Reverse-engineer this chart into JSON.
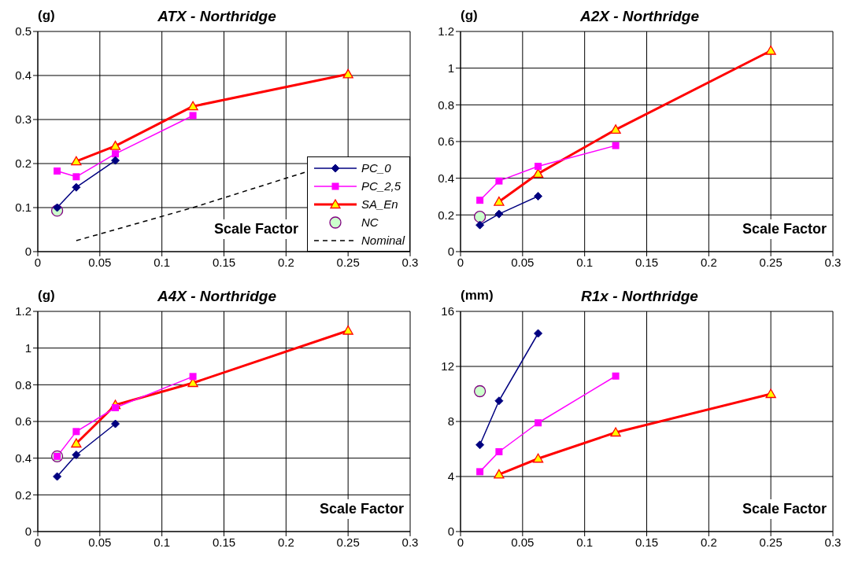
{
  "chart_data": [
    {
      "type": "line",
      "title": "ATX - Northridge",
      "ylabel": "(g)",
      "xlabel": "Scale Factor",
      "xlim": [
        0,
        0.3
      ],
      "xticks": [
        0,
        0.05,
        0.1,
        0.15,
        0.2,
        0.25,
        0.3
      ],
      "ylim": [
        0,
        0.5
      ],
      "yticks": [
        0,
        0.1,
        0.2,
        0.3,
        0.4,
        0.5
      ],
      "grid": true,
      "legend": "bottom right",
      "series": [
        {
          "name": "PC_0",
          "color": "#000080",
          "marker": "diamond",
          "line_style": "solid",
          "x": [
            0.0156,
            0.031,
            0.0625
          ],
          "values": [
            0.1,
            0.146,
            0.207
          ]
        },
        {
          "name": "PC_2,5",
          "color": "#ff00ff",
          "marker": "square",
          "line_style": "solid",
          "x": [
            0.0156,
            0.031,
            0.0625,
            0.125
          ],
          "values": [
            0.183,
            0.17,
            0.222,
            0.309
          ]
        },
        {
          "name": "SA_En",
          "color": "#ff0000",
          "marker": "triangle",
          "line_style": "solid",
          "x": [
            0.031,
            0.0625,
            0.125,
            0.25
          ],
          "values": [
            0.205,
            0.24,
            0.33,
            0.403
          ]
        },
        {
          "name": "NC",
          "type": "scatter",
          "color": "#ccffcc",
          "marker": "circle",
          "x": [
            0.0156
          ],
          "values": [
            0.093
          ]
        },
        {
          "name": "Nominal",
          "color": "#000000",
          "marker": "none",
          "line_style": "dashed",
          "x": [
            0.031,
            0.0625,
            0.125,
            0.215
          ],
          "values": [
            0.025,
            0.05,
            0.1,
            0.18
          ]
        }
      ]
    },
    {
      "type": "line",
      "title": "A2X - Northridge",
      "ylabel": "(g)",
      "xlabel": "Scale Factor",
      "xlim": [
        0,
        0.3
      ],
      "xticks": [
        0,
        0.05,
        0.1,
        0.15,
        0.2,
        0.25,
        0.3
      ],
      "ylim": [
        0,
        1.2
      ],
      "yticks": [
        0,
        0.2,
        0.4,
        0.6,
        0.8,
        1,
        1.2
      ],
      "grid": true,
      "series": [
        {
          "color": "#000080",
          "marker": "diamond",
          "line_style": "solid",
          "x": [
            0.0156,
            0.031,
            0.0625
          ],
          "values": [
            0.145,
            0.205,
            0.302
          ]
        },
        {
          "color": "#ff00ff",
          "marker": "square",
          "line_style": "solid",
          "x": [
            0.0156,
            0.031,
            0.0625,
            0.125
          ],
          "values": [
            0.28,
            0.385,
            0.465,
            0.578
          ]
        },
        {
          "color": "#ff0000",
          "marker": "triangle",
          "line_style": "solid",
          "x": [
            0.031,
            0.0625,
            0.125,
            0.25
          ],
          "values": [
            0.272,
            0.425,
            0.665,
            1.095
          ]
        },
        {
          "type": "scatter",
          "color": "#ccffcc",
          "marker": "circle",
          "x": [
            0.0156
          ],
          "values": [
            0.19
          ]
        }
      ]
    },
    {
      "type": "line",
      "title": "A4X - Northridge",
      "ylabel": "(g)",
      "xlabel": "Scale Factor",
      "xlim": [
        0,
        0.3
      ],
      "xticks": [
        0,
        0.05,
        0.1,
        0.15,
        0.2,
        0.25,
        0.3
      ],
      "ylim": [
        0,
        1.2
      ],
      "yticks": [
        0,
        0.2,
        0.4,
        0.6,
        0.8,
        1,
        1.2
      ],
      "grid": true,
      "series": [
        {
          "color": "#000080",
          "marker": "diamond",
          "line_style": "solid",
          "x": [
            0.0156,
            0.031,
            0.0625
          ],
          "values": [
            0.3,
            0.418,
            0.587
          ]
        },
        {
          "color": "#ff00ff",
          "marker": "square",
          "line_style": "solid",
          "x": [
            0.0156,
            0.031,
            0.0625,
            0.125
          ],
          "values": [
            0.41,
            0.545,
            0.675,
            0.845
          ]
        },
        {
          "color": "#ff0000",
          "marker": "triangle",
          "line_style": "solid",
          "x": [
            0.031,
            0.0625,
            0.125,
            0.25
          ],
          "values": [
            0.48,
            0.69,
            0.81,
            1.095
          ]
        },
        {
          "type": "scatter",
          "color": "#ccffcc",
          "marker": "circle",
          "x": [
            0.0156
          ],
          "values": [
            0.41
          ]
        }
      ]
    },
    {
      "type": "line",
      "title": "R1x - Northridge",
      "ylabel": "(mm)",
      "xlabel": "Scale Factor",
      "xlim": [
        0,
        0.3
      ],
      "xticks": [
        0,
        0.05,
        0.1,
        0.15,
        0.2,
        0.25,
        0.3
      ],
      "ylim": [
        0,
        16
      ],
      "yticks": [
        0,
        4,
        8,
        12,
        16
      ],
      "grid": true,
      "series": [
        {
          "color": "#000080",
          "marker": "diamond",
          "line_style": "solid",
          "x": [
            0.0156,
            0.031,
            0.0625
          ],
          "values": [
            6.3,
            9.5,
            14.4
          ]
        },
        {
          "color": "#ff00ff",
          "marker": "square",
          "line_style": "solid",
          "x": [
            0.0156,
            0.031,
            0.0625,
            0.125
          ],
          "values": [
            4.35,
            5.8,
            7.9,
            11.3
          ]
        },
        {
          "color": "#ff0000",
          "marker": "triangle",
          "line_style": "solid",
          "x": [
            0.031,
            0.0625,
            0.125,
            0.25
          ],
          "values": [
            4.15,
            5.3,
            7.2,
            10
          ]
        },
        {
          "type": "scatter",
          "color": "#ccffcc",
          "marker": "circle",
          "x": [
            0.0156
          ],
          "values": [
            10.2
          ]
        }
      ]
    }
  ]
}
